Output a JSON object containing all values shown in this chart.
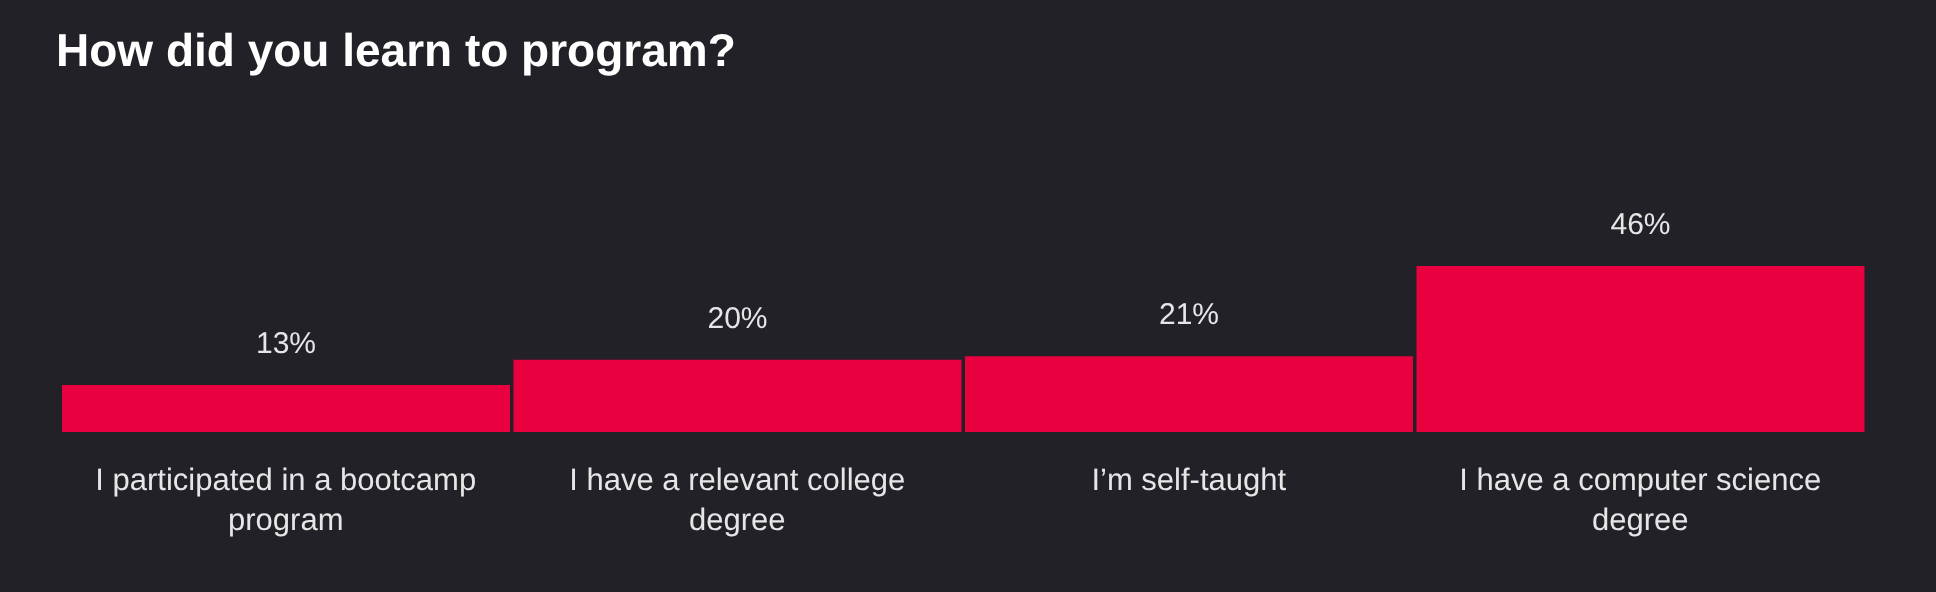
{
  "chart_data": {
    "type": "bar",
    "title": "How did you learn to program?",
    "categories": [
      "I participated in a bootcamp program",
      "I have a relevant college degree",
      "I’m self-taught",
      "I have a computer science degree"
    ],
    "values": [
      13,
      20,
      21,
      46
    ],
    "color": "#e8003f",
    "value_labels": [
      "13%",
      "20%",
      "21%",
      "46%"
    ]
  }
}
